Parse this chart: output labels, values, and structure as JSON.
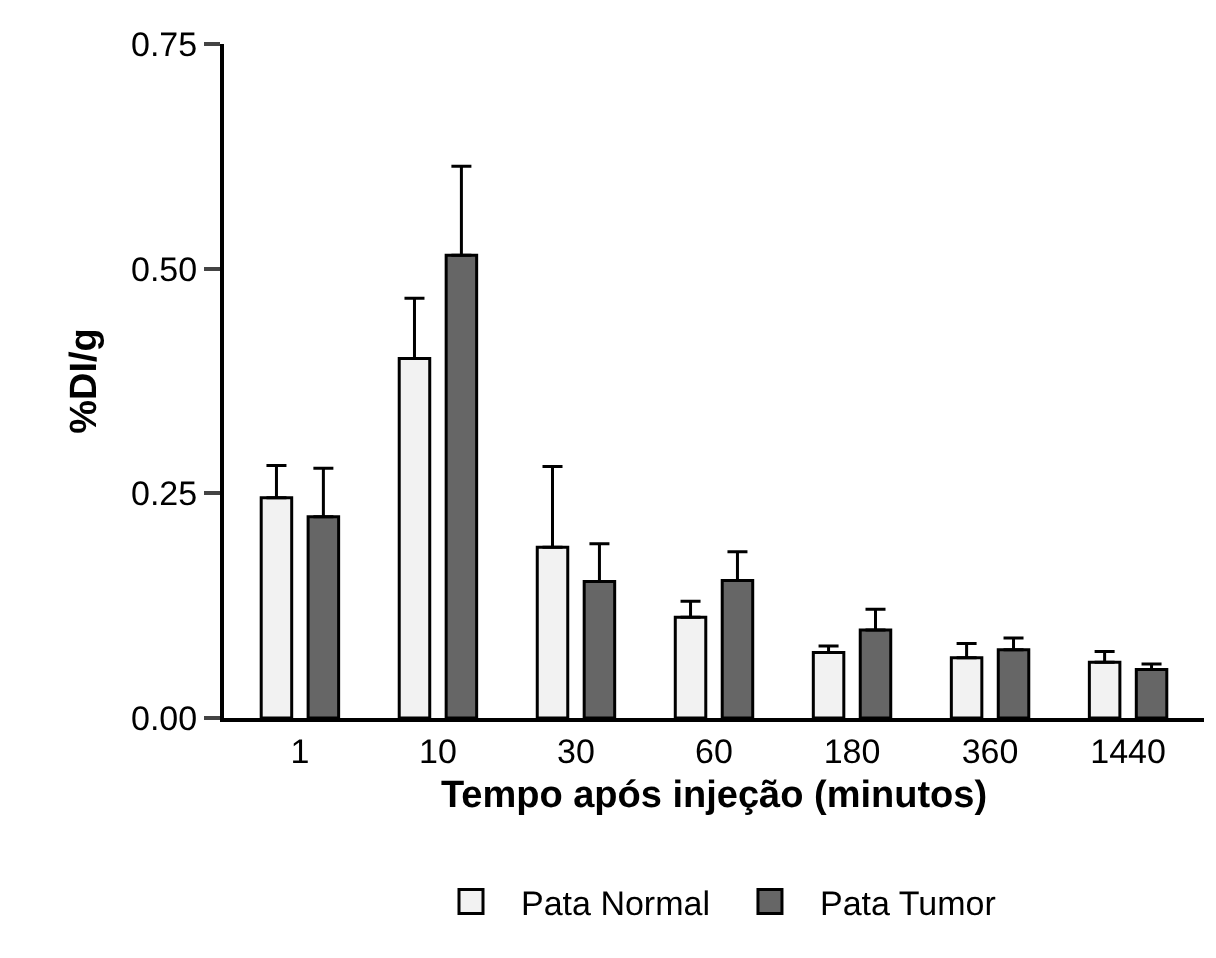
{
  "chart_data": {
    "type": "bar",
    "xlabel": "Tempo após injeção (minutos)",
    "ylabel": "%DI/g",
    "categories": [
      "1",
      "10",
      "30",
      "60",
      "180",
      "360",
      "1440"
    ],
    "series": [
      {
        "name": "Pata Normal",
        "color": "#f2f2f2",
        "values": [
          0.245,
          0.4,
          0.19,
          0.112,
          0.073,
          0.067,
          0.062
        ],
        "errors": [
          [
            0.245,
            0.281
          ],
          [
            0.4,
            0.467
          ],
          [
            0.19,
            0.28
          ],
          [
            0.112,
            0.13
          ],
          [
            0.073,
            0.08
          ],
          [
            0.067,
            0.083
          ],
          [
            0.062,
            0.074
          ]
        ]
      },
      {
        "name": "Pata Tumor",
        "color": "#666666",
        "values": [
          0.224,
          0.515,
          0.152,
          0.153,
          0.098,
          0.076,
          0.054
        ],
        "errors": [
          [
            0.224,
            0.278
          ],
          [
            0.515,
            0.614
          ],
          [
            0.152,
            0.194
          ],
          [
            0.153,
            0.185
          ],
          [
            0.098,
            0.121
          ],
          [
            0.076,
            0.089
          ],
          [
            0.054,
            0.06
          ]
        ]
      }
    ],
    "ylim": [
      0,
      0.75
    ],
    "yticks": [
      {
        "value": 0,
        "label": "0.00"
      },
      {
        "value": 0.25,
        "label": "0.25"
      },
      {
        "value": 0.5,
        "label": "0.50"
      },
      {
        "value": 0.75,
        "label": "0.75"
      }
    ],
    "legend": "bottom"
  }
}
